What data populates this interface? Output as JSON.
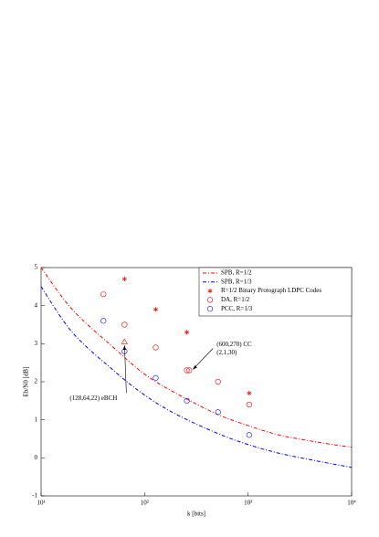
{
  "chart_data": {
    "type": "line",
    "xlabel": "k [bits]",
    "ylabel": "Eb/N0 [dB]",
    "xscale": "log",
    "xlim": [
      10,
      10000
    ],
    "ylim": [
      -1,
      5
    ],
    "xticks": [
      {
        "value": 10,
        "label": "10¹"
      },
      {
        "value": 100,
        "label": "10²"
      },
      {
        "value": 1000,
        "label": "10³"
      },
      {
        "value": 10000,
        "label": "10⁴"
      }
    ],
    "yticks": [
      -1,
      0,
      1,
      2,
      3,
      4,
      5
    ],
    "legend": "upper right",
    "series": [
      {
        "name": "SPB, R=1/2",
        "color": "#ff0000",
        "kind": "line",
        "x": [
          10,
          20,
          50,
          100,
          200,
          500,
          1000,
          2000,
          5000,
          10000
        ],
        "values": [
          5.0,
          3.9,
          2.9,
          2.2,
          1.7,
          1.15,
          0.85,
          0.6,
          0.4,
          0.28
        ]
      },
      {
        "name": "SPB, R=1/3",
        "color": "#0000ff",
        "kind": "line",
        "x": [
          10,
          20,
          50,
          100,
          200,
          500,
          1000,
          2000,
          5000,
          10000
        ],
        "values": [
          4.5,
          3.3,
          2.3,
          1.65,
          1.15,
          0.65,
          0.35,
          0.12,
          -0.1,
          -0.25
        ]
      },
      {
        "name": "R=1/2 Binary Protograph LDPC Codes",
        "color": "#ff0000",
        "kind": "star",
        "x": [
          64,
          128,
          256,
          1024
        ],
        "values": [
          4.7,
          3.9,
          3.3,
          1.7
        ]
      },
      {
        "name": "DA, R=1/2",
        "color": "#ff0000",
        "kind": "circle",
        "x": [
          40,
          64,
          128,
          256,
          270,
          512,
          1024
        ],
        "values": [
          4.3,
          3.5,
          2.9,
          2.3,
          2.3,
          2.0,
          1.4
        ]
      },
      {
        "name": "PCC, R=1/3",
        "color": "#0000ff",
        "kind": "circle",
        "x": [
          40,
          64,
          128,
          256,
          512,
          1024
        ],
        "values": [
          3.6,
          2.8,
          2.1,
          1.5,
          1.2,
          0.6
        ]
      }
    ],
    "annotations": [
      {
        "lines": [
          "(600,270) CC",
          "(2,1,30)"
        ],
        "xy": [
          270,
          2.3
        ]
      },
      {
        "lines": [
          "(128,64,22) eBCH"
        ],
        "xy": [
          64,
          3.05
        ],
        "marker": "triangle"
      }
    ]
  }
}
